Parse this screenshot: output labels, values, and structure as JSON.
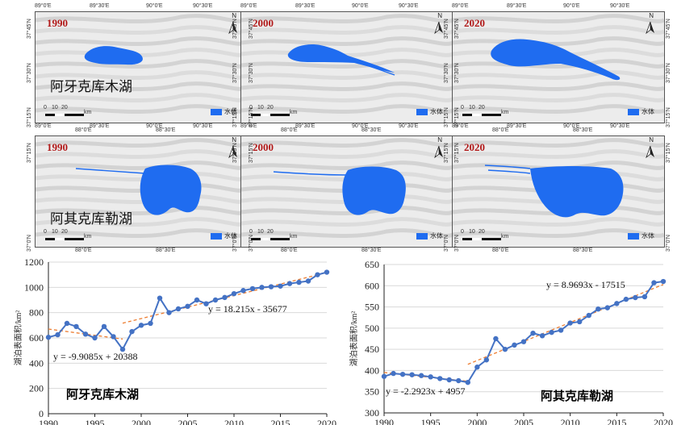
{
  "maps": {
    "row1": {
      "lon_ticks_top": [
        "89°0'E",
        "89°30'E",
        "90°0'E",
        "90°30'E"
      ],
      "lon_ticks_bottom": [
        "89°0'E",
        "89°30'E",
        "90°0'E",
        "90°30'E"
      ],
      "lat_ticks": [
        "37°45'N",
        "37°30'N",
        "37°15'N"
      ],
      "lake_name": "阿牙克库木湖",
      "panels": [
        {
          "year": "1990"
        },
        {
          "year": "2000"
        },
        {
          "year": "2020"
        }
      ]
    },
    "row2": {
      "lon_ticks_top": [
        "88°0'E",
        "88°30'E"
      ],
      "lon_ticks_bottom": [
        "88°0'E",
        "88°30'E"
      ],
      "lat_ticks": [
        "37°15'N",
        "37°0'N"
      ],
      "lake_name": "阿其克库勒湖",
      "panels": [
        {
          "year": "1990"
        },
        {
          "year": "2000"
        },
        {
          "year": "2020"
        }
      ]
    },
    "north_label": "N",
    "legend_label": "水体",
    "scale_labels": [
      "0",
      "10",
      "20",
      "km"
    ],
    "water_color": "#1f6cf0",
    "year_color": "#b11818"
  },
  "chart_data": [
    {
      "type": "line",
      "title": "阿牙克库木湖",
      "ylabel": "湖泊表面积/km²",
      "xlabel": "",
      "xlim": [
        1990,
        2020
      ],
      "ylim": [
        0,
        1200
      ],
      "xticks": [
        "1990",
        "1995",
        "2000",
        "2005",
        "2010",
        "2015",
        "2020"
      ],
      "yticks": [
        "0",
        "200",
        "400",
        "600",
        "800",
        "1000",
        "1200"
      ],
      "x": [
        1990,
        1991,
        1992,
        1993,
        1994,
        1995,
        1996,
        1997,
        1998,
        1999,
        2000,
        2001,
        2002,
        2003,
        2004,
        2005,
        2006,
        2007,
        2008,
        2009,
        2010,
        2011,
        2012,
        2013,
        2014,
        2015,
        2016,
        2017,
        2018,
        2019,
        2020
      ],
      "values": [
        605,
        625,
        715,
        690,
        630,
        600,
        690,
        610,
        510,
        650,
        700,
        715,
        915,
        800,
        830,
        850,
        900,
        870,
        900,
        920,
        950,
        975,
        990,
        1000,
        1005,
        1010,
        1030,
        1040,
        1050,
        1100,
        1120
      ],
      "series_color": "#4472c4",
      "trend_color": "#ed7d31",
      "trends": [
        {
          "label": "y = -9.9085x + 20388",
          "x_start": 1990,
          "x_end": 1998,
          "slope": -9.9085,
          "intercept": 20388
        },
        {
          "label": "y = 18.215x - 35677",
          "x_start": 1998,
          "x_end": 2020,
          "slope": 18.215,
          "intercept": -35677
        }
      ]
    },
    {
      "type": "line",
      "title": "阿其克库勒湖",
      "ylabel": "湖泊表面积/km²",
      "xlabel": "",
      "xlim": [
        1990,
        2020
      ],
      "ylim": [
        300,
        650
      ],
      "xticks": [
        "1990",
        "1995",
        "2000",
        "2005",
        "2010",
        "2015",
        "2020"
      ],
      "yticks": [
        "300",
        "350",
        "400",
        "450",
        "500",
        "550",
        "600",
        "650"
      ],
      "x": [
        1990,
        1991,
        1992,
        1993,
        1994,
        1995,
        1996,
        1997,
        1998,
        1999,
        2000,
        2001,
        2002,
        2003,
        2004,
        2005,
        2006,
        2007,
        2008,
        2009,
        2010,
        2011,
        2012,
        2013,
        2014,
        2015,
        2016,
        2017,
        2018,
        2019,
        2020
      ],
      "values": [
        386,
        393,
        391,
        390,
        388,
        385,
        381,
        378,
        376,
        372,
        408,
        425,
        475,
        450,
        460,
        468,
        488,
        482,
        490,
        495,
        512,
        515,
        530,
        545,
        548,
        558,
        568,
        572,
        574,
        607,
        610
      ],
      "series_color": "#4472c4",
      "trend_color": "#ed7d31",
      "trends": [
        {
          "label": "y = -2.2923x + 4957",
          "x_start": 1990,
          "x_end": 1999,
          "slope": -2.2923,
          "intercept": 4957
        },
        {
          "label": "y = 8.9693x - 17515",
          "x_start": 1999,
          "x_end": 2020,
          "slope": 8.9693,
          "intercept": -17515
        }
      ]
    }
  ]
}
